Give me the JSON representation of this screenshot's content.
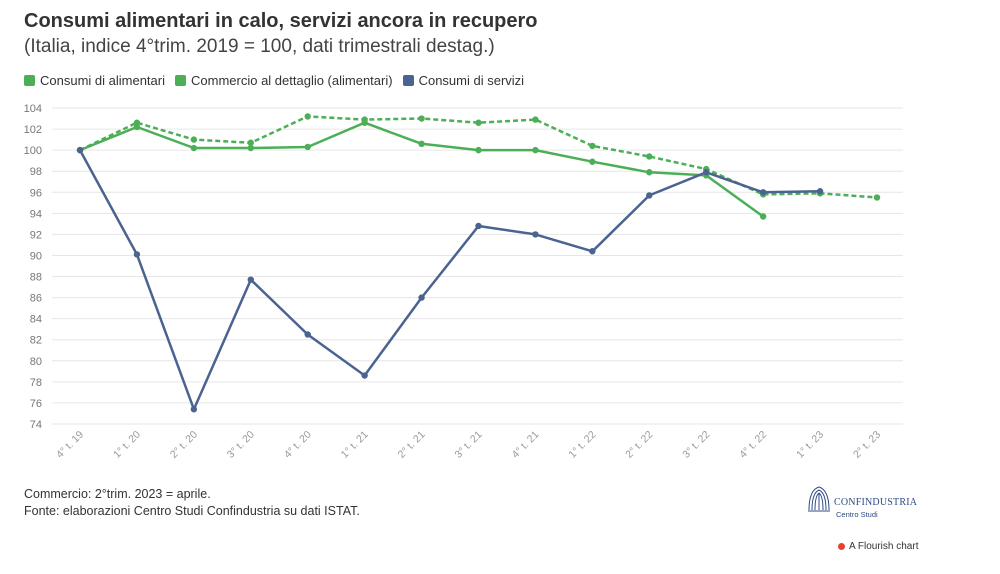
{
  "chart_data": {
    "type": "line",
    "title": "Consumi alimentari in calo, servizi ancora in recupero",
    "subtitle": "(Italia, indice 4°trim. 2019 = 100, dati trimestrali destag.)",
    "categories": [
      "4° t. 19",
      "1° t. 20",
      "2° t. 20",
      "3° t. 20",
      "4° t. 20",
      "1° t. 21",
      "2° t. 21",
      "3° t. 21",
      "4° t. 21",
      "1° t. 22",
      "2° t. 22",
      "3° t. 22",
      "4° t. 22",
      "1° t. 23",
      "2° t. 23"
    ],
    "ylim": [
      74,
      104
    ],
    "yticks": [
      74,
      76,
      78,
      80,
      82,
      84,
      86,
      88,
      90,
      92,
      94,
      96,
      98,
      100,
      102,
      104
    ],
    "series": [
      {
        "name": "Consumi di alimentari",
        "color": "#4caf57",
        "dash": false,
        "values": [
          100,
          102.2,
          100.2,
          100.2,
          100.3,
          102.6,
          100.6,
          100.0,
          100.0,
          98.9,
          97.9,
          97.6,
          93.7,
          null,
          null
        ]
      },
      {
        "name": "Commercio al dettaglio (alimentari)",
        "color": "#4caf57",
        "dash": true,
        "values": [
          100,
          102.6,
          101.0,
          100.7,
          103.2,
          102.9,
          103.0,
          102.6,
          102.9,
          100.4,
          99.4,
          98.2,
          95.8,
          95.9,
          95.5
        ]
      },
      {
        "name": "Consumi di servizi",
        "color": "#4a6390",
        "dash": false,
        "values": [
          100,
          90.1,
          75.4,
          87.7,
          82.5,
          78.6,
          86.0,
          92.8,
          92.0,
          90.4,
          95.7,
          97.9,
          96.0,
          96.1,
          null
        ]
      }
    ]
  },
  "footnote_1": "Commercio: 2°trim. 2023 = aprile.",
  "footnote_2": "Fonte: elaborazioni Centro Studi Confindustria su dati ISTAT.",
  "logo": {
    "name": "CONFINDUSTRIA",
    "sub": "Centro Studi"
  },
  "flourish_label": "A Flourish chart"
}
